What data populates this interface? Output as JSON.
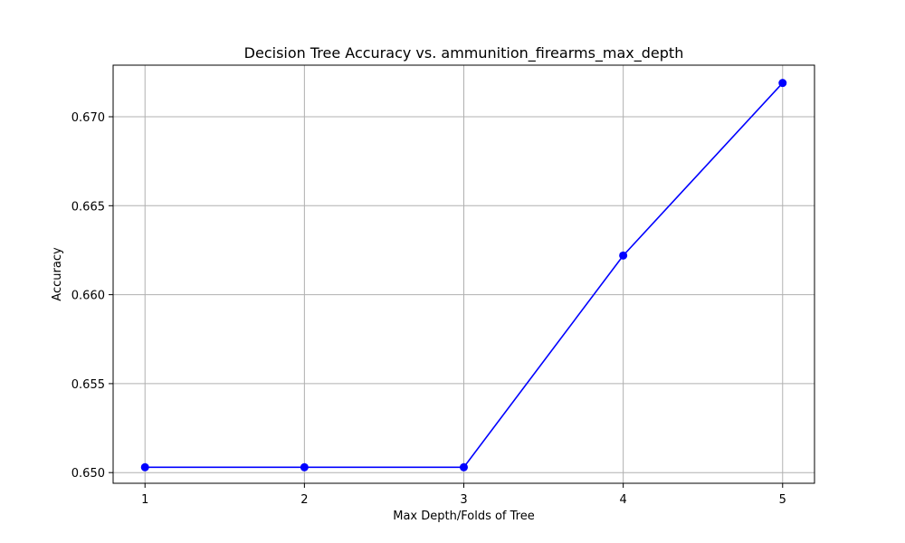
{
  "chart_data": {
    "type": "line",
    "title": "Decision Tree Accuracy vs. ammunition_firearms_max_depth",
    "xlabel": "Max Depth/Folds of Tree",
    "ylabel": "Accuracy",
    "x": [
      1,
      2,
      3,
      4,
      5
    ],
    "series": [
      {
        "values": [
          0.6503,
          0.6503,
          0.6503,
          0.6622,
          0.6719
        ],
        "color": "#0000ff",
        "marker": "circle"
      }
    ],
    "xticks": [
      1,
      2,
      3,
      4,
      5
    ],
    "xtick_labels": [
      "1",
      "2",
      "3",
      "4",
      "5"
    ],
    "yticks": [
      0.65,
      0.655,
      0.66,
      0.665,
      0.67
    ],
    "ytick_labels": [
      "0.650",
      "0.655",
      "0.660",
      "0.665",
      "0.670"
    ],
    "xlim": [
      0.8,
      5.2
    ],
    "ylim": [
      0.6494,
      0.6729
    ],
    "grid": true,
    "colors": {
      "grid": "#b0b0b0",
      "axes": "#000000",
      "line": "#0000ff"
    }
  }
}
